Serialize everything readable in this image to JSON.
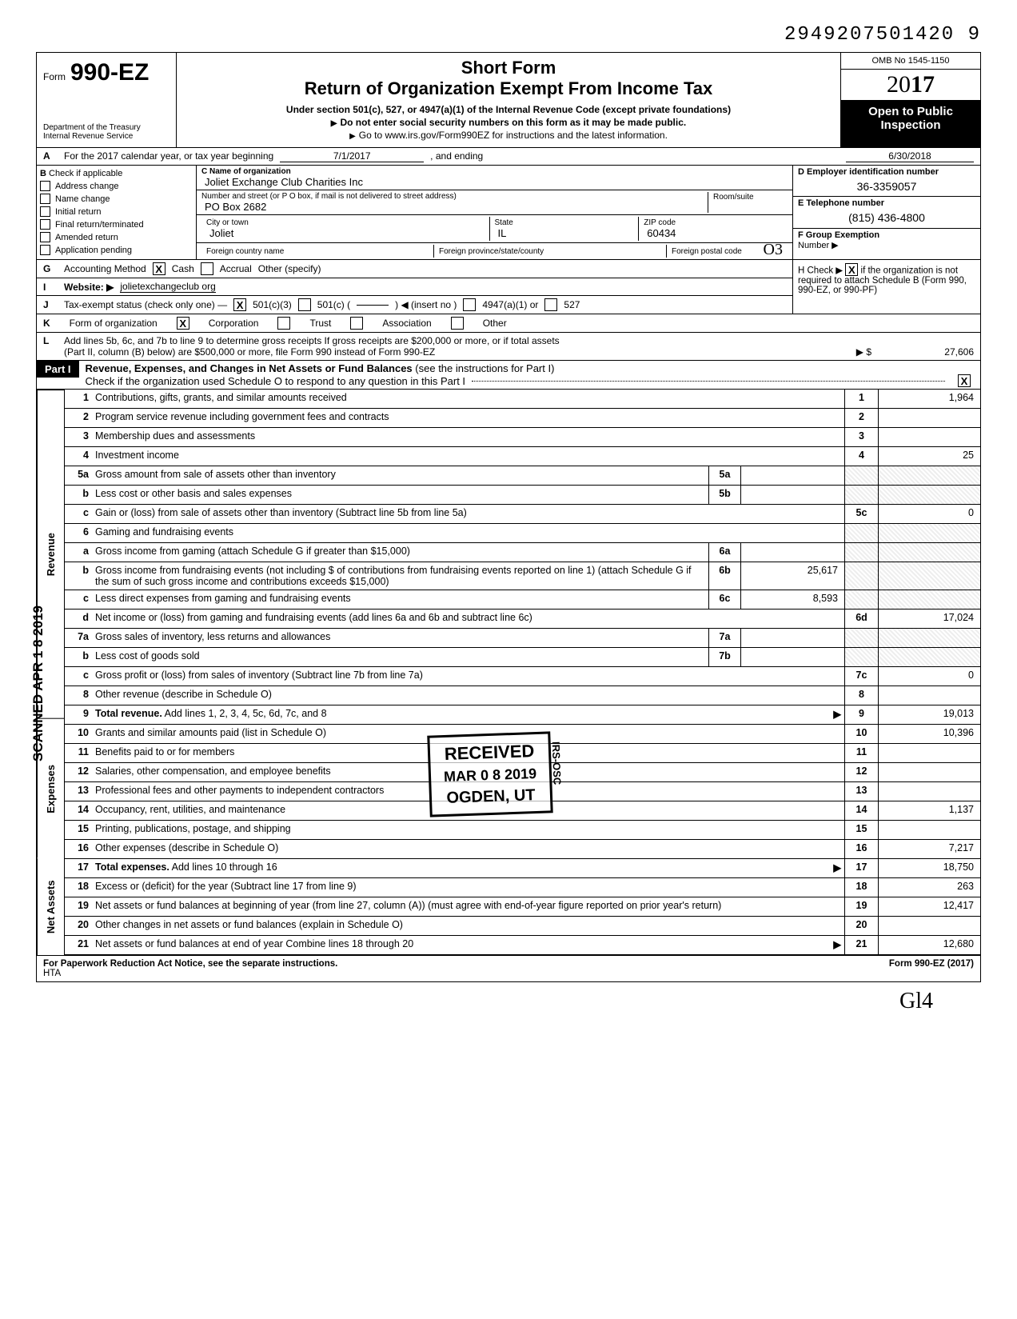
{
  "doc_id": "2949207501420 9",
  "header": {
    "form_word": "Form",
    "form_number": "990-EZ",
    "dept1": "Department of the Treasury",
    "dept2": "Internal Revenue Service",
    "title1": "Short Form",
    "title2": "Return of Organization Exempt From Income Tax",
    "sub1": "Under section 501(c), 527, or 4947(a)(1) of the Internal Revenue Code (except private foundations)",
    "sub2": "Do not enter social security numbers on this form as it may be made public.",
    "sub3": "Go to www.irs.gov/Form990EZ for instructions and the latest information.",
    "omb": "OMB No 1545-1150",
    "year_prefix": "20",
    "year_bold": "17",
    "open1": "Open to Public",
    "open2": "Inspection"
  },
  "lineA": {
    "label": "A",
    "text1": "For the 2017 calendar year, or tax year beginning",
    "date1": "7/1/2017",
    "text2": ", and ending",
    "date2": "6/30/2018"
  },
  "colB": {
    "label": "B",
    "heading": "Check if applicable",
    "items": [
      "Address change",
      "Name change",
      "Initial return",
      "Final return/terminated",
      "Amended return",
      "Application pending"
    ]
  },
  "colC": {
    "name_label": "C Name of organization",
    "name_val": "Joliet Exchange Club Charities Inc",
    "addr_label": "Number and street (or P O box, if mail is not delivered to street address)",
    "room_label": "Room/suite",
    "addr_val": "PO Box 2682",
    "city_label": "City or town",
    "city_val": "Joliet",
    "state_label": "State",
    "state_val": "IL",
    "zip_label": "ZIP code",
    "zip_val": "60434",
    "foreign_country": "Foreign country name",
    "foreign_prov": "Foreign province/state/county",
    "foreign_postal": "Foreign postal code"
  },
  "colD": {
    "d_label": "D Employer identification number",
    "d_val": "36-3359057",
    "e_label": "E Telephone number",
    "e_val": "(815) 436-4800",
    "f_label": "F Group Exemption",
    "f_number": "Number ▶"
  },
  "lineG": {
    "label": "G",
    "text": "Accounting Method",
    "opt_cash": "Cash",
    "opt_accrual": "Accrual",
    "opt_other": "Other (specify)",
    "h_text": "H Check ▶",
    "h_text2": "if the organization is not required to attach Schedule B (Form 990, 990-EZ, or 990-PF)"
  },
  "lineI": {
    "label": "I",
    "text": "Website: ▶",
    "val": "jolietexchangeclub org"
  },
  "lineJ": {
    "label": "J",
    "text": "Tax-exempt status (check only one) —",
    "opt1": "501(c)(3)",
    "opt2": "501(c) (",
    "opt2b": ") ◀ (insert no )",
    "opt3": "4947(a)(1) or",
    "opt4": "527"
  },
  "lineK": {
    "label": "K",
    "text": "Form of organization",
    "opt1": "Corporation",
    "opt2": "Trust",
    "opt3": "Association",
    "opt4": "Other"
  },
  "lineL": {
    "label": "L",
    "text1": "Add lines 5b, 6c, and 7b to line 9 to determine gross receipts  If gross receipts are $200,000 or more, or if total assets",
    "text2": "(Part II, column (B) below) are $500,000 or more, file Form 990 instead of Form 990-EZ",
    "arrow": "▶ $",
    "val": "27,606"
  },
  "part1": {
    "label": "Part I",
    "title": "Revenue, Expenses, and Changes in Net Assets or Fund Balances",
    "title2": "(see the instructions for Part I)",
    "check_text": "Check if the organization used Schedule O to respond to any question in this Part I",
    "checked": "X"
  },
  "side_labels": {
    "revenue": "Revenue",
    "expenses": "Expenses",
    "netassets": "Net Assets",
    "scanned": "SCANNED APR 1 8 2019"
  },
  "lines": {
    "1": {
      "n": "1",
      "d": "Contributions, gifts, grants, and similar amounts received",
      "bn": "1",
      "v": "1,964"
    },
    "2": {
      "n": "2",
      "d": "Program service revenue including government fees and contracts",
      "bn": "2",
      "v": ""
    },
    "3": {
      "n": "3",
      "d": "Membership dues and assessments",
      "bn": "3",
      "v": ""
    },
    "4": {
      "n": "4",
      "d": "Investment income",
      "bn": "4",
      "v": "25"
    },
    "5a": {
      "n": "5a",
      "d": "Gross amount from sale of assets other than inventory",
      "mn": "5a",
      "mv": ""
    },
    "5b": {
      "n": "b",
      "d": "Less  cost or other basis and sales expenses",
      "mn": "5b",
      "mv": ""
    },
    "5c": {
      "n": "c",
      "d": "Gain or (loss) from sale of assets other than inventory (Subtract line 5b from line 5a)",
      "bn": "5c",
      "v": "0"
    },
    "6": {
      "n": "6",
      "d": "Gaming and fundraising events"
    },
    "6a": {
      "n": "a",
      "d": "Gross income from gaming (attach Schedule G if greater than $15,000)",
      "mn": "6a",
      "mv": ""
    },
    "6b": {
      "n": "b",
      "d": "Gross income from fundraising events (not including     $                     of contributions from fundraising events reported on line 1) (attach Schedule G if the sum of such gross income and contributions exceeds $15,000)",
      "mn": "6b",
      "mv": "25,617"
    },
    "6c": {
      "n": "c",
      "d": "Less  direct expenses from gaming and fundraising events",
      "mn": "6c",
      "mv": "8,593"
    },
    "6d": {
      "n": "d",
      "d": "Net income or (loss) from gaming and fundraising events (add lines 6a and 6b and subtract line 6c)",
      "bn": "6d",
      "v": "17,024"
    },
    "7a": {
      "n": "7a",
      "d": "Gross sales of inventory, less returns and allowances",
      "mn": "7a",
      "mv": ""
    },
    "7b": {
      "n": "b",
      "d": "Less  cost of goods sold",
      "mn": "7b",
      "mv": ""
    },
    "7c": {
      "n": "c",
      "d": "Gross profit or (loss) from sales of inventory (Subtract line 7b from line 7a)",
      "bn": "7c",
      "v": "0"
    },
    "8": {
      "n": "8",
      "d": "Other revenue (describe in Schedule O)",
      "bn": "8",
      "v": ""
    },
    "9": {
      "n": "9",
      "d": "Total revenue. Add lines 1, 2, 3, 4, 5c, 6d, 7c, and 8",
      "bn": "9",
      "v": "19,013",
      "bold": true,
      "arrow": true
    },
    "10": {
      "n": "10",
      "d": "Grants and similar amounts paid (list in Schedule O)",
      "bn": "10",
      "v": "10,396"
    },
    "11": {
      "n": "11",
      "d": "Benefits paid to or for members",
      "bn": "11",
      "v": ""
    },
    "12": {
      "n": "12",
      "d": "Salaries, other compensation, and employee benefits",
      "bn": "12",
      "v": ""
    },
    "13": {
      "n": "13",
      "d": "Professional fees and other payments to independent contractors",
      "bn": "13",
      "v": ""
    },
    "14": {
      "n": "14",
      "d": "Occupancy, rent, utilities, and maintenance",
      "bn": "14",
      "v": "1,137"
    },
    "15": {
      "n": "15",
      "d": "Printing, publications, postage, and shipping",
      "bn": "15",
      "v": ""
    },
    "16": {
      "n": "16",
      "d": "Other expenses (describe in Schedule O)",
      "bn": "16",
      "v": "7,217"
    },
    "17": {
      "n": "17",
      "d": "Total expenses. Add lines 10 through 16",
      "bn": "17",
      "v": "18,750",
      "bold": true,
      "arrow": true
    },
    "18": {
      "n": "18",
      "d": "Excess or (deficit) for the year (Subtract line 17 from line 9)",
      "bn": "18",
      "v": "263"
    },
    "19": {
      "n": "19",
      "d": "Net assets or fund balances at beginning of year (from line 27, column (A)) (must agree with end-of-year figure reported on prior year's return)",
      "bn": "19",
      "v": "12,417"
    },
    "20": {
      "n": "20",
      "d": "Other changes in net assets or fund balances (explain in Schedule O)",
      "bn": "20",
      "v": ""
    },
    "21": {
      "n": "21",
      "d": "Net assets or fund balances at end of year  Combine lines 18 through 20",
      "bn": "21",
      "v": "12,680",
      "arrow": true
    }
  },
  "stamp": {
    "l1": "RECEIVED",
    "l2": "MAR 0 8 2019",
    "l3": "OGDEN, UT",
    "side": "IRS-OSC"
  },
  "footer": {
    "left": "For Paperwork Reduction Act Notice, see the separate instructions.",
    "hta": "HTA",
    "right": "Form 990-EZ (2017)"
  },
  "signature": "Gl4",
  "handwritten_o3": "O3"
}
